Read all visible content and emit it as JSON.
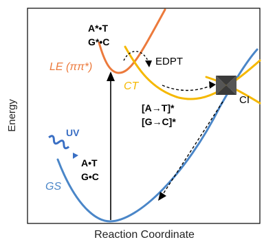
{
  "axes": {
    "ylabel": "Energy",
    "xlabel": "Reaction Coordinate"
  },
  "curves": {
    "gs": {
      "label": "GS",
      "color": "#4a86c8"
    },
    "le": {
      "label": "LE (ππ*)",
      "color": "#ec7a3c"
    },
    "ct": {
      "label": "CT",
      "color": "#f5b800"
    }
  },
  "labels": {
    "ground_pair_1": "A•T",
    "ground_pair_2": "G•C",
    "excited_pair_1": "A*•T",
    "excited_pair_2": "G*•C",
    "ct_pair_1": "[A→T]*",
    "ct_pair_2": "[G→C]*",
    "edpt": "EDPT",
    "ci": "CI",
    "uv": "UV"
  },
  "colors": {
    "uv": "#3a6fc4",
    "ci_marker": "#333333",
    "frame": "#000000"
  }
}
